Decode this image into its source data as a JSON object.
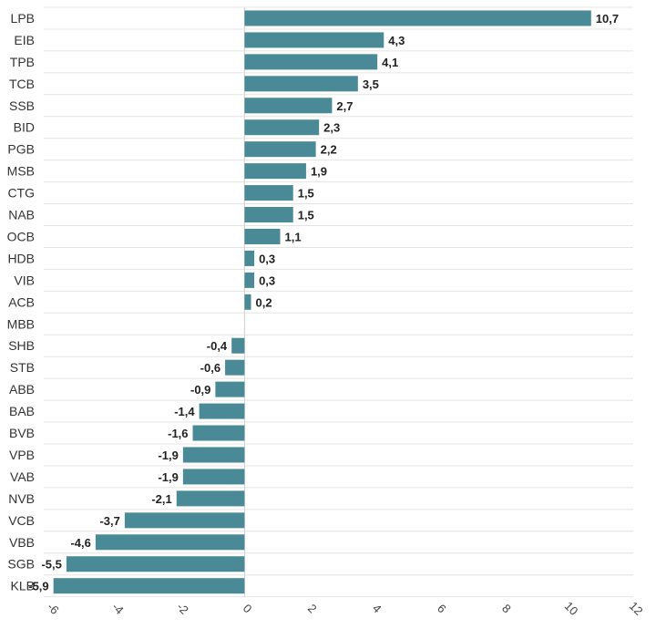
{
  "chart_data": {
    "type": "bar",
    "orientation": "horizontal",
    "title": "",
    "xlabel": "",
    "ylabel": "",
    "categories": [
      "LPB",
      "EIB",
      "TPB",
      "TCB",
      "SSB",
      "BID",
      "PGB",
      "MSB",
      "CTG",
      "NAB",
      "OCB",
      "HDB",
      "VIB",
      "ACB",
      "MBB",
      "SHB",
      "STB",
      "ABB",
      "BAB",
      "BVB",
      "VPB",
      "VAB",
      "NVB",
      "VCB",
      "VBB",
      "SGB",
      "KLB"
    ],
    "values": [
      10.7,
      4.3,
      4.1,
      3.5,
      2.7,
      2.3,
      2.2,
      1.9,
      1.5,
      1.5,
      1.1,
      0.3,
      0.3,
      0.2,
      0,
      -0.4,
      -0.6,
      -0.9,
      -1.4,
      -1.6,
      -1.9,
      -1.9,
      -2.1,
      -3.7,
      -4.6,
      -5.5,
      -5.9
    ],
    "value_labels": [
      "10,7",
      "4,3",
      "4,1",
      "3,5",
      "2,7",
      "2,3",
      "2,2",
      "1,9",
      "1,5",
      "1,5",
      "1,1",
      "0,3",
      "0,3",
      "0,2",
      "",
      "-0,4",
      "-0,6",
      "-0,9",
      "-1,4",
      "-1,6",
      "-1,9",
      "-1,9",
      "-2,1",
      "-3,7",
      "-4,6",
      "-5,5",
      "-5,9"
    ],
    "xlim": [
      -6.2,
      12
    ],
    "x_ticks": [
      -6,
      -4,
      -2,
      0,
      2,
      4,
      6,
      8,
      10,
      12
    ],
    "x_tick_labels": [
      "-6",
      "-4",
      "-2",
      "0",
      "2",
      "4",
      "6",
      "8",
      "10",
      "12"
    ],
    "grid": true,
    "bar_color": "#4a8a96"
  }
}
